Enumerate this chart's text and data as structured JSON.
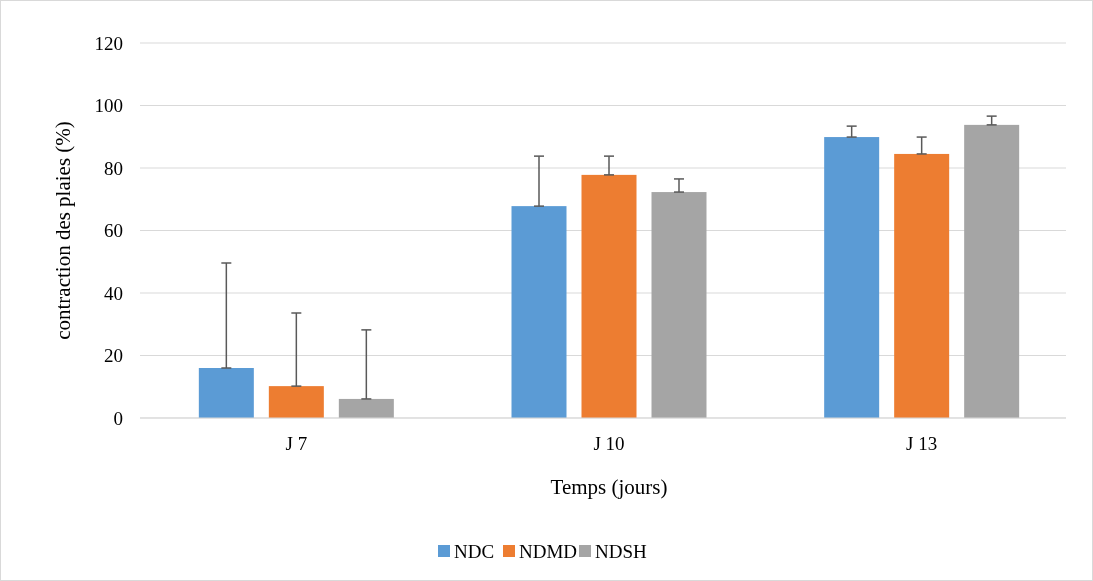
{
  "chart_data": {
    "type": "bar",
    "xlabel": "Temps (jours)",
    "ylabel": "contraction des plaies (%)",
    "categories": [
      "J 7",
      "J 10",
      "J 13"
    ],
    "series": [
      {
        "name": "NDC",
        "color": "#5b9bd5",
        "values": [
          16,
          67.8,
          89.9
        ],
        "errors": [
          [
            16,
            49.6
          ],
          [
            67.8,
            83.8
          ],
          [
            89.9,
            93.4
          ]
        ]
      },
      {
        "name": "NDMD",
        "color": "#ed7d31",
        "values": [
          10.2,
          77.8,
          84.5
        ],
        "errors": [
          [
            10.2,
            33.6
          ],
          [
            77.8,
            83.8
          ],
          [
            84.5,
            89.9
          ]
        ]
      },
      {
        "name": "NDSH",
        "color": "#a5a5a5",
        "values": [
          6.1,
          72.3,
          93.8
        ],
        "errors": [
          [
            6.1,
            28.2
          ],
          [
            72.3,
            76.5
          ],
          [
            93.8,
            96.6
          ]
        ]
      }
    ],
    "ylim": [
      0,
      120
    ],
    "yticks": [
      0,
      20,
      40,
      60,
      80,
      100,
      120
    ],
    "grid": "y",
    "legend": "bottom"
  }
}
